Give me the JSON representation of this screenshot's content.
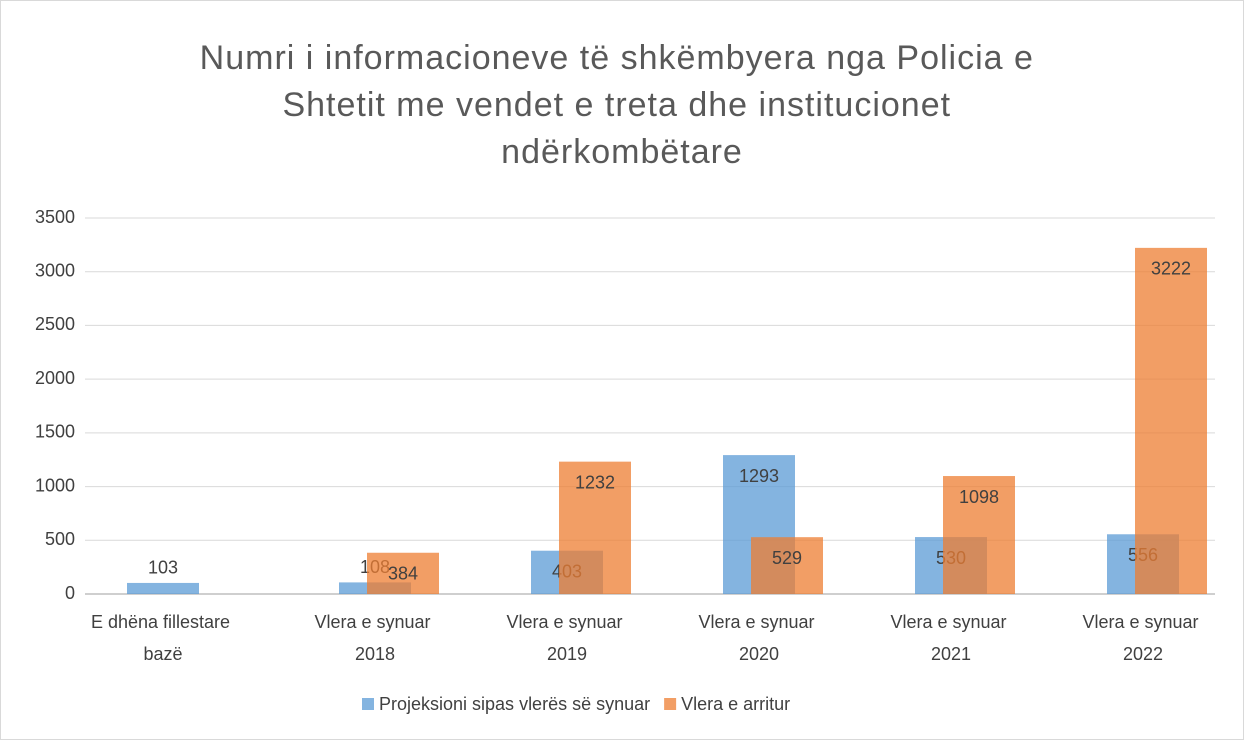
{
  "chart_data": {
    "type": "bar",
    "title": "Numri i informacioneve të shkëmbyera nga Policia e Shtetit me vendet e treta dhe institucionet ndërkombëtare",
    "categories": [
      "E dhëna fillestare bazë",
      "Vlera e synuar 2018",
      "Vlera e synuar 2019",
      "Vlera e synuar 2020",
      "Vlera e synuar 2021",
      "Vlera e synuar 2022"
    ],
    "series": [
      {
        "name": "Projeksioni sipas vlerës së synuar",
        "color": "#5b9bd5",
        "values": [
          103,
          108,
          403,
          1293,
          530,
          556
        ]
      },
      {
        "name": "Vlera e arritur",
        "color": "#ed7d31",
        "values": [
          null,
          384,
          1232,
          529,
          1098,
          3222
        ]
      }
    ],
    "ylim": [
      0,
      3500
    ],
    "yticks": [
      0,
      500,
      1000,
      1500,
      2000,
      2500,
      3000,
      3500
    ],
    "grid": true,
    "legend": "bottom"
  }
}
